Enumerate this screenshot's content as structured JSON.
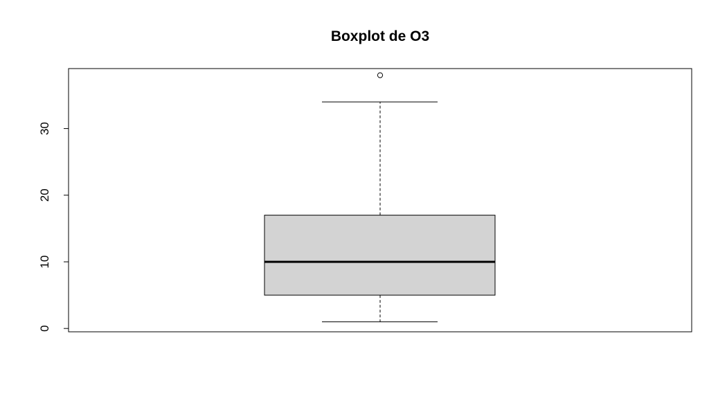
{
  "chart_data": {
    "type": "boxplot",
    "title": "Boxplot de O3",
    "xlabel": "",
    "ylabel": "",
    "ylim": [
      -0.5,
      39
    ],
    "yticks": [
      0,
      10,
      20,
      30
    ],
    "ytick_labels": [
      "0",
      "10",
      "20",
      "30"
    ],
    "box": {
      "whisker_low": 1,
      "q1": 5,
      "median": 10,
      "q3": 17,
      "whisker_high": 34,
      "outliers": [
        38
      ]
    },
    "grid": false,
    "legend": "none",
    "colors": {
      "box_fill": "#d3d3d3",
      "stroke": "#000000",
      "background": "#ffffff"
    }
  }
}
